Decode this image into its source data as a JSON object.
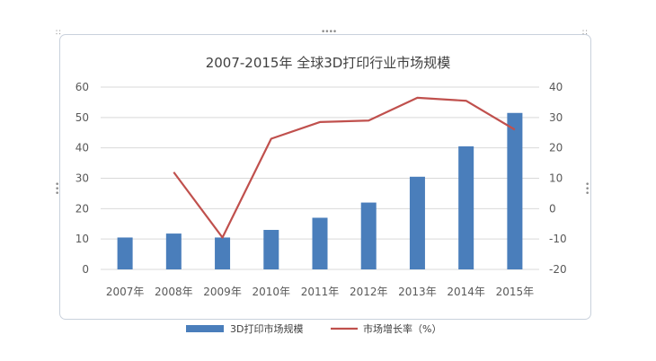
{
  "chart_data": {
    "type": "bar+line",
    "title": "2007-2015年  全球3D打印行业市场规模",
    "categories": [
      "2007年",
      "2008年",
      "2009年",
      "2010年",
      "2011年",
      "2012年",
      "2013年",
      "2014年",
      "2015年"
    ],
    "series": [
      {
        "name": "3D打印市场规模",
        "type": "bar",
        "axis": "left",
        "color": "#4a7ebb",
        "values": [
          10.5,
          11.8,
          10.5,
          13,
          17,
          22,
          30.5,
          40.5,
          51.5
        ]
      },
      {
        "name": "市场增长率（%）",
        "type": "line",
        "axis": "right",
        "color": "#c0504d",
        "values": [
          null,
          12,
          -9.5,
          23,
          28.5,
          29,
          36.5,
          35.5,
          26
        ]
      }
    ],
    "ylim_left": [
      0,
      60
    ],
    "yticks_left": [
      "0",
      "10",
      "20",
      "30",
      "40",
      "50",
      "60"
    ],
    "ylim_right": [
      -20,
      40
    ],
    "yticks_right": [
      "-20",
      "-10",
      "0",
      "10",
      "20",
      "30",
      "40"
    ],
    "grid": true,
    "legend_position": "bottom"
  }
}
